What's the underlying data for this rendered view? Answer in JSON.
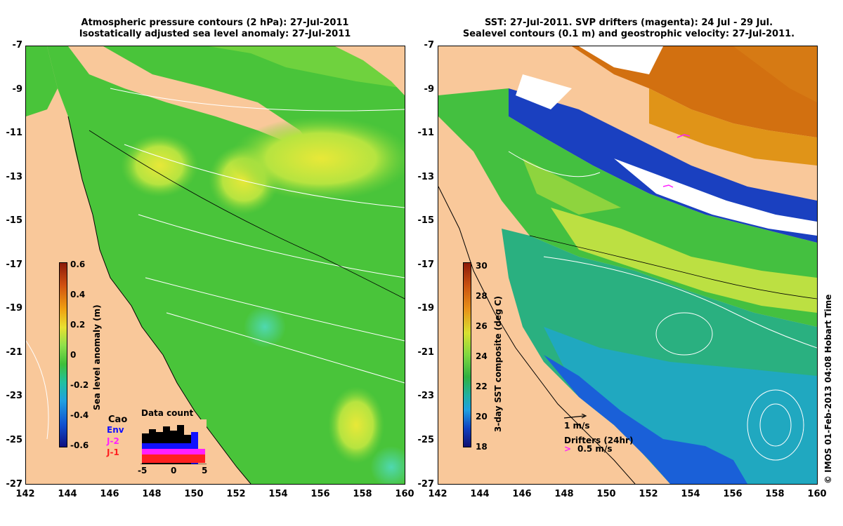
{
  "left_panel": {
    "title_line1": "Atmospheric pressure contours (2 hPa): 27-Jul-2011",
    "title_line2": "Isostatically adjusted sea level anomaly: 27-Jul-2011",
    "colorbar": {
      "label": "Sea level anomaly (m)",
      "ticks": [
        "0.6",
        "0.4",
        "0.2",
        "0",
        "-0.2",
        "-0.4",
        "-0.6"
      ]
    },
    "data_count": {
      "title": "Data count",
      "legend": [
        "Env",
        "J-2",
        "J-1"
      ],
      "legend_colors": [
        "#1010ff",
        "#ff20ff",
        "#ff2020"
      ],
      "x_ticks": [
        "-5",
        "0",
        "5"
      ],
      "overlay_label": "Cao"
    }
  },
  "right_panel": {
    "title_line1": "SST: 27-Jul-2011. SVP drifters (magenta): 24 Jul - 29 Jul.",
    "title_line2": "Sealevel contours (0.1 m) and geostrophic velocity: 27-Jul-2011.",
    "colorbar": {
      "label": "3-day SST composite (deg C)",
      "ticks": [
        "30",
        "28",
        "26",
        "24",
        "22",
        "20",
        "18"
      ]
    },
    "velocity_scale_label": "1 m/s",
    "drifters_label": "Drifters (24hr)",
    "drifters_scale_label": "0.5 m/s",
    "drifter_color": "#ff20ff"
  },
  "axes": {
    "y_ticks": [
      "-7",
      "-9",
      "-11",
      "-13",
      "-15",
      "-17",
      "-19",
      "-21",
      "-23",
      "-25",
      "-27"
    ],
    "x_ticks": [
      "142",
      "144",
      "146",
      "148",
      "150",
      "152",
      "154",
      "156",
      "158",
      "160"
    ]
  },
  "colors": {
    "land": "#f9c89a",
    "ocean_green": "#3fbf3a",
    "ocean_lightgreen": "#8ee04a",
    "ocean_yellow": "#d8e83a",
    "ocean_cyan": "#2fd0c0",
    "ocean_blue": "#1a60e0",
    "ocean_orange": "#e08a10",
    "ocean_dark_orange": "#c85a08"
  },
  "credit": "© IMOS 01-Feb-2013 04:08 Hobart Time"
}
